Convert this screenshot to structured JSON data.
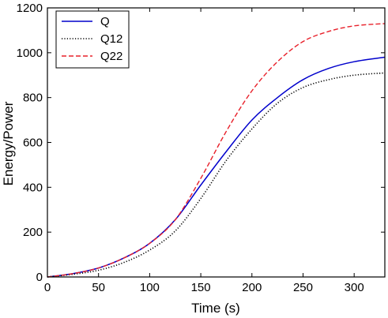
{
  "chart_data": {
    "type": "line",
    "xlabel": "Time (s)",
    "ylabel": "Energy/Power",
    "xlim": [
      0,
      330
    ],
    "ylim": [
      0,
      1200
    ],
    "xticks": [
      0,
      50,
      100,
      150,
      200,
      250,
      300
    ],
    "yticks": [
      0,
      200,
      400,
      600,
      800,
      1000,
      1200
    ],
    "grid": false,
    "legend_position": "top-left",
    "series": [
      {
        "name": "Q",
        "color": "#0000cc",
        "style": "solid",
        "x": [
          0,
          25,
          50,
          75,
          100,
          125,
          150,
          175,
          200,
          225,
          250,
          275,
          300,
          330
        ],
        "y": [
          0,
          15,
          40,
          85,
          150,
          255,
          410,
          560,
          700,
          800,
          880,
          930,
          960,
          980
        ]
      },
      {
        "name": "Q12",
        "color": "#000000",
        "style": "dotted",
        "x": [
          0,
          25,
          50,
          75,
          100,
          125,
          150,
          175,
          200,
          225,
          250,
          275,
          300,
          330
        ],
        "y": [
          0,
          12,
          30,
          65,
          120,
          205,
          350,
          520,
          660,
          775,
          845,
          880,
          900,
          910
        ]
      },
      {
        "name": "Q22",
        "color": "#e8202a",
        "style": "dashed",
        "x": [
          0,
          25,
          50,
          75,
          100,
          125,
          150,
          175,
          200,
          225,
          250,
          275,
          300,
          330
        ],
        "y": [
          0,
          15,
          40,
          85,
          150,
          255,
          440,
          650,
          830,
          960,
          1050,
          1095,
          1120,
          1130
        ]
      }
    ]
  }
}
